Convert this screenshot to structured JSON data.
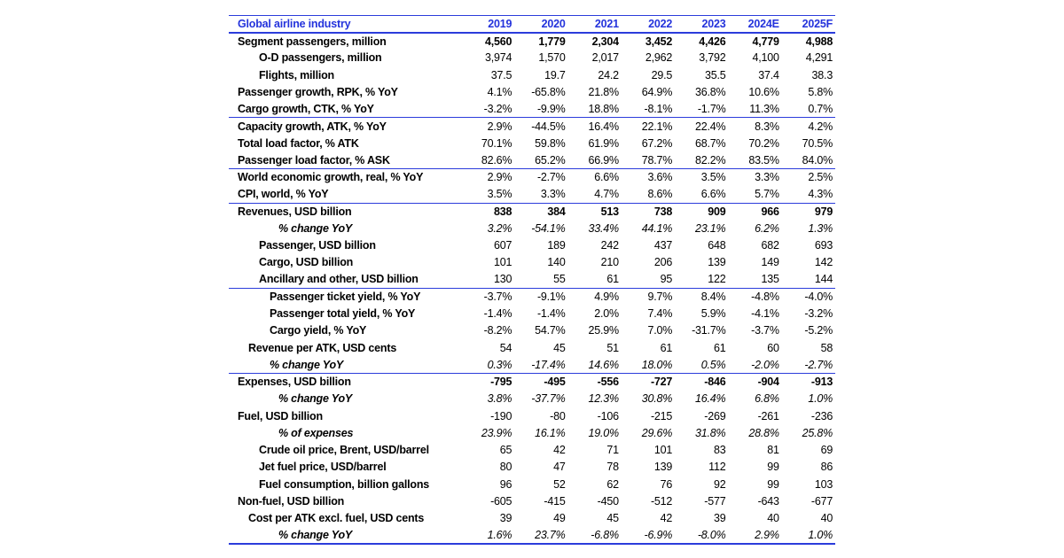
{
  "meta": {
    "accent_color": "#2433dc",
    "line_color": "#2b3cdb",
    "text_color": "#000000",
    "background_color": "#ffffff"
  },
  "chart_data": {
    "type": "table",
    "title": "Global airline industry",
    "columns": [
      "2019",
      "2020",
      "2021",
      "2022",
      "2023",
      "2024E",
      "2025F"
    ],
    "rows": [
      {
        "label": "Segment passengers, million",
        "values": [
          "4,560",
          "1,779",
          "2,304",
          "3,452",
          "4,426",
          "4,779",
          "4,988"
        ],
        "indent": 0,
        "emphasis": "bold",
        "group_end": false
      },
      {
        "label": "O-D passengers, million",
        "values": [
          "3,974",
          "1,570",
          "2,017",
          "2,962",
          "3,792",
          "4,100",
          "4,291"
        ],
        "indent": 2,
        "emphasis": "",
        "group_end": false
      },
      {
        "label": "Flights, million",
        "values": [
          "37.5",
          "19.7",
          "24.2",
          "29.5",
          "35.5",
          "37.4",
          "38.3"
        ],
        "indent": 2,
        "emphasis": "",
        "group_end": false
      },
      {
        "label": "Passenger growth, RPK, % YoY",
        "values": [
          "4.1%",
          "-65.8%",
          "21.8%",
          "64.9%",
          "36.8%",
          "10.6%",
          "5.8%"
        ],
        "indent": 0,
        "emphasis": "",
        "group_end": false
      },
      {
        "label": "Cargo growth, CTK, % YoY",
        "values": [
          "-3.2%",
          "-9.9%",
          "18.8%",
          "-8.1%",
          "-1.7%",
          "11.3%",
          "0.7%"
        ],
        "indent": 0,
        "emphasis": "",
        "group_end": true
      },
      {
        "label": "Capacity growth, ATK, % YoY",
        "values": [
          "2.9%",
          "-44.5%",
          "16.4%",
          "22.1%",
          "22.4%",
          "8.3%",
          "4.2%"
        ],
        "indent": 0,
        "emphasis": "",
        "group_end": false
      },
      {
        "label": "Total load factor, % ATK",
        "values": [
          "70.1%",
          "59.8%",
          "61.9%",
          "67.2%",
          "68.7%",
          "70.2%",
          "70.5%"
        ],
        "indent": 0,
        "emphasis": "",
        "group_end": false
      },
      {
        "label": "Passenger load factor, % ASK",
        "values": [
          "82.6%",
          "65.2%",
          "66.9%",
          "78.7%",
          "82.2%",
          "83.5%",
          "84.0%"
        ],
        "indent": 0,
        "emphasis": "",
        "group_end": true
      },
      {
        "label": "World economic growth, real, % YoY",
        "values": [
          "2.9%",
          "-2.7%",
          "6.6%",
          "3.6%",
          "3.5%",
          "3.3%",
          "2.5%"
        ],
        "indent": 0,
        "emphasis": "",
        "group_end": false
      },
      {
        "label": "CPI, world, % YoY",
        "values": [
          "3.5%",
          "3.3%",
          "4.7%",
          "8.6%",
          "6.6%",
          "5.7%",
          "4.3%"
        ],
        "indent": 0,
        "emphasis": "",
        "group_end": true
      },
      {
        "label": "Revenues, USD billion",
        "values": [
          "838",
          "384",
          "513",
          "738",
          "909",
          "966",
          "979"
        ],
        "indent": 0,
        "emphasis": "bold",
        "group_end": false
      },
      {
        "label": "% change YoY",
        "values": [
          "3.2%",
          "-54.1%",
          "33.4%",
          "44.1%",
          "23.1%",
          "6.2%",
          "1.3%"
        ],
        "indent": 4,
        "emphasis": "italic",
        "group_end": false
      },
      {
        "label": "Passenger, USD billion",
        "values": [
          "607",
          "189",
          "242",
          "437",
          "648",
          "682",
          "693"
        ],
        "indent": 2,
        "emphasis": "",
        "group_end": false
      },
      {
        "label": "Cargo, USD billion",
        "values": [
          "101",
          "140",
          "210",
          "206",
          "139",
          "149",
          "142"
        ],
        "indent": 2,
        "emphasis": "",
        "group_end": false
      },
      {
        "label": "Ancillary and other, USD billion",
        "values": [
          "130",
          "55",
          "61",
          "95",
          "122",
          "135",
          "144"
        ],
        "indent": 2,
        "emphasis": "",
        "group_end": true
      },
      {
        "label": "Passenger ticket yield, % YoY",
        "values": [
          "-3.7%",
          "-9.1%",
          "4.9%",
          "9.7%",
          "8.4%",
          "-4.8%",
          "-4.0%"
        ],
        "indent": 3,
        "emphasis": "",
        "group_end": false
      },
      {
        "label": "Passenger total yield, % YoY",
        "values": [
          "-1.4%",
          "-1.4%",
          "2.0%",
          "7.4%",
          "5.9%",
          "-4.1%",
          "-3.2%"
        ],
        "indent": 3,
        "emphasis": "",
        "group_end": false
      },
      {
        "label": "Cargo yield, % YoY",
        "values": [
          "-8.2%",
          "54.7%",
          "25.9%",
          "7.0%",
          "-31.7%",
          "-3.7%",
          "-5.2%"
        ],
        "indent": 3,
        "emphasis": "",
        "group_end": false
      },
      {
        "label": "Revenue per ATK, USD cents",
        "values": [
          "54",
          "45",
          "51",
          "61",
          "61",
          "60",
          "58"
        ],
        "indent": 1,
        "emphasis": "",
        "group_end": false
      },
      {
        "label": "% change YoY",
        "values": [
          "0.3%",
          "-17.4%",
          "14.6%",
          "18.0%",
          "0.5%",
          "-2.0%",
          "-2.7%"
        ],
        "indent": 3,
        "emphasis": "italic",
        "group_end": true
      },
      {
        "label": "Expenses, USD billion",
        "values": [
          "-795",
          "-495",
          "-556",
          "-727",
          "-846",
          "-904",
          "-913"
        ],
        "indent": 0,
        "emphasis": "bold",
        "group_end": false
      },
      {
        "label": "% change YoY",
        "values": [
          "3.8%",
          "-37.7%",
          "12.3%",
          "30.8%",
          "16.4%",
          "6.8%",
          "1.0%"
        ],
        "indent": 4,
        "emphasis": "italic",
        "group_end": false
      },
      {
        "label": "Fuel, USD billion",
        "values": [
          "-190",
          "-80",
          "-106",
          "-215",
          "-269",
          "-261",
          "-236"
        ],
        "indent": 0,
        "emphasis": "",
        "group_end": false
      },
      {
        "label": "% of expenses",
        "values": [
          "23.9%",
          "16.1%",
          "19.0%",
          "29.6%",
          "31.8%",
          "28.8%",
          "25.8%"
        ],
        "indent": 4,
        "emphasis": "italic",
        "group_end": false
      },
      {
        "label": "Crude oil price, Brent, USD/barrel",
        "values": [
          "65",
          "42",
          "71",
          "101",
          "83",
          "81",
          "69"
        ],
        "indent": 2,
        "emphasis": "",
        "group_end": false
      },
      {
        "label": "Jet fuel price, USD/barrel",
        "values": [
          "80",
          "47",
          "78",
          "139",
          "112",
          "99",
          "86"
        ],
        "indent": 2,
        "emphasis": "",
        "group_end": false
      },
      {
        "label": "Fuel consumption, billion gallons",
        "values": [
          "96",
          "52",
          "62",
          "76",
          "92",
          "99",
          "103"
        ],
        "indent": 2,
        "emphasis": "",
        "group_end": false
      },
      {
        "label": "Non-fuel, USD billion",
        "values": [
          "-605",
          "-415",
          "-450",
          "-512",
          "-577",
          "-643",
          "-677"
        ],
        "indent": 0,
        "emphasis": "",
        "group_end": false
      },
      {
        "label": "Cost per ATK excl. fuel, USD cents",
        "values": [
          "39",
          "49",
          "45",
          "42",
          "39",
          "40",
          "40"
        ],
        "indent": 1,
        "emphasis": "",
        "group_end": false
      },
      {
        "label": "% change YoY",
        "values": [
          "1.6%",
          "23.7%",
          "-6.8%",
          "-6.9%",
          "-8.0%",
          "2.9%",
          "1.0%"
        ],
        "indent": 4,
        "emphasis": "italic",
        "group_end": false
      }
    ]
  }
}
